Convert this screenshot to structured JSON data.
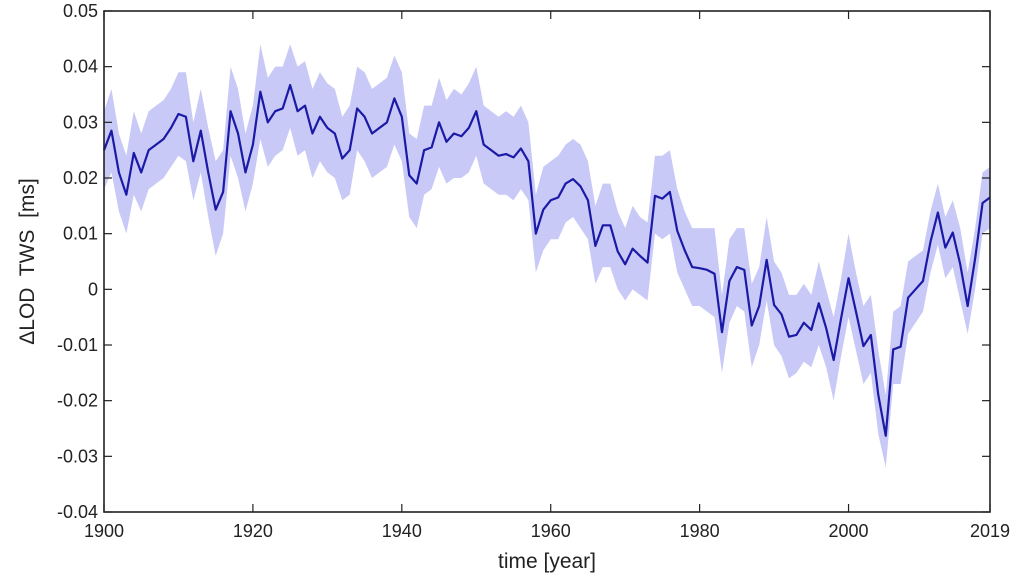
{
  "chart_data": {
    "type": "line",
    "title": "",
    "xlabel": "time [year]",
    "ylabel": "ΔLOD  TWS  [ms]",
    "xlim": [
      1900,
      2019
    ],
    "ylim": [
      -0.04,
      0.05
    ],
    "x_ticks": [
      1900,
      1920,
      1940,
      1960,
      1980,
      2000,
      2019
    ],
    "x_tick_labels": [
      "1900",
      "1920",
      "1940",
      "1960",
      "1980",
      "2000",
      "2019"
    ],
    "y_ticks": [
      -0.04,
      -0.03,
      -0.02,
      -0.01,
      0,
      0.01,
      0.02,
      0.03,
      0.04,
      0.05
    ],
    "y_tick_labels": [
      "-0.04",
      "-0.03",
      "-0.02",
      "-0.01",
      "0",
      "0.01",
      "0.02",
      "0.03",
      "0.04",
      "0.05"
    ],
    "grid": false,
    "legend": "none",
    "colors": {
      "line": "#1a1aa6",
      "band": "#c9c9f7",
      "axis": "#222222"
    },
    "x": [
      1900,
      1901,
      1902,
      1903,
      1904,
      1905,
      1906,
      1907,
      1908,
      1909,
      1910,
      1911,
      1912,
      1913,
      1914,
      1915,
      1916,
      1917,
      1918,
      1919,
      1920,
      1921,
      1922,
      1923,
      1924,
      1925,
      1926,
      1927,
      1928,
      1929,
      1930,
      1931,
      1932,
      1933,
      1934,
      1935,
      1936,
      1937,
      1938,
      1939,
      1940,
      1941,
      1942,
      1943,
      1944,
      1945,
      1946,
      1947,
      1948,
      1949,
      1950,
      1951,
      1952,
      1953,
      1954,
      1955,
      1956,
      1957,
      1958,
      1959,
      1960,
      1961,
      1962,
      1963,
      1964,
      1965,
      1966,
      1967,
      1968,
      1969,
      1970,
      1971,
      1972,
      1973,
      1974,
      1975,
      1976,
      1977,
      1978,
      1979,
      1980,
      1981,
      1982,
      1983,
      1984,
      1985,
      1986,
      1987,
      1988,
      1989,
      1990,
      1991,
      1992,
      1993,
      1994,
      1995,
      1996,
      1997,
      1998,
      1999,
      2000,
      2001,
      2002,
      2003,
      2004,
      2005,
      2006,
      2007,
      2008,
      2009,
      2010,
      2011,
      2012,
      2013,
      2014,
      2015,
      2016,
      2017,
      2018,
      2019
    ],
    "series": [
      {
        "values": [
          0.025,
          0.0285,
          0.021,
          0.017,
          0.0245,
          0.021,
          0.025,
          0.026,
          0.027,
          0.029,
          0.0315,
          0.031,
          0.023,
          0.0285,
          0.021,
          0.0143,
          0.0175,
          0.032,
          0.028,
          0.021,
          0.026,
          0.0355,
          0.03,
          0.032,
          0.0325,
          0.0367,
          0.032,
          0.033,
          0.028,
          0.031,
          0.029,
          0.028,
          0.0235,
          0.025,
          0.0325,
          0.031,
          0.028,
          0.029,
          0.03,
          0.0343,
          0.031,
          0.0205,
          0.019,
          0.025,
          0.0255,
          0.03,
          0.0265,
          0.028,
          0.0275,
          0.029,
          0.032,
          0.026,
          0.025,
          0.024,
          0.0243,
          0.0237,
          0.0253,
          0.023,
          0.01,
          0.0143,
          0.016,
          0.0165,
          0.019,
          0.0198,
          0.0185,
          0.016,
          0.0078,
          0.0115,
          0.0115,
          0.0068,
          0.0045,
          0.0073,
          0.006,
          0.0048,
          0.0168,
          0.0163,
          0.0175,
          0.0105,
          0.007,
          0.004,
          0.0038,
          0.0035,
          0.0028,
          -0.0077,
          0.0015,
          0.004,
          0.0035,
          -0.0065,
          -0.003,
          0.0053,
          -0.0028,
          -0.0045,
          -0.0085,
          -0.0082,
          -0.006,
          -0.0073,
          -0.0025,
          -0.007,
          -0.0127,
          -0.0052,
          0.002,
          -0.004,
          -0.0102,
          -0.0082,
          -0.019,
          -0.0263,
          -0.0108,
          -0.0103,
          -0.0015,
          0,
          0.0015,
          0.0085,
          0.0138,
          0.0075,
          0.0102,
          0.0045,
          -0.003,
          0.0055,
          0.0155,
          0.0165
        ],
        "band_lower": [
          0.018,
          0.021,
          0.014,
          0.01,
          0.017,
          0.014,
          0.018,
          0.019,
          0.02,
          0.022,
          0.024,
          0.023,
          0.016,
          0.021,
          0.013,
          0.006,
          0.01,
          0.024,
          0.02,
          0.014,
          0.019,
          0.027,
          0.022,
          0.024,
          0.025,
          0.029,
          0.024,
          0.025,
          0.02,
          0.023,
          0.021,
          0.02,
          0.016,
          0.017,
          0.025,
          0.023,
          0.02,
          0.021,
          0.022,
          0.026,
          0.023,
          0.013,
          0.011,
          0.017,
          0.018,
          0.022,
          0.019,
          0.02,
          0.02,
          0.021,
          0.024,
          0.019,
          0.018,
          0.017,
          0.017,
          0.016,
          0.018,
          0.016,
          0.003,
          0.007,
          0.009,
          0.009,
          0.012,
          0.013,
          0.011,
          0.009,
          0.001,
          0.004,
          0.004,
          0.0,
          -0.002,
          0.0,
          -0.001,
          -0.002,
          0.01,
          0.009,
          0.01,
          0.003,
          0.0,
          -0.003,
          -0.003,
          -0.004,
          -0.005,
          -0.015,
          -0.006,
          -0.003,
          -0.004,
          -0.014,
          -0.01,
          -0.002,
          -0.01,
          -0.012,
          -0.016,
          -0.015,
          -0.013,
          -0.014,
          -0.01,
          -0.014,
          -0.02,
          -0.012,
          -0.005,
          -0.011,
          -0.017,
          -0.015,
          -0.026,
          -0.032,
          -0.017,
          -0.017,
          -0.008,
          -0.006,
          -0.004,
          0.003,
          0.008,
          0.002,
          0.004,
          -0.002,
          -0.008,
          0.0,
          0.01,
          0.011
        ],
        "band_upper": [
          0.032,
          0.036,
          0.028,
          0.024,
          0.032,
          0.028,
          0.032,
          0.033,
          0.034,
          0.036,
          0.039,
          0.039,
          0.03,
          0.036,
          0.029,
          0.023,
          0.025,
          0.04,
          0.036,
          0.028,
          0.033,
          0.044,
          0.038,
          0.04,
          0.04,
          0.044,
          0.04,
          0.041,
          0.036,
          0.039,
          0.037,
          0.036,
          0.031,
          0.033,
          0.04,
          0.039,
          0.036,
          0.037,
          0.038,
          0.042,
          0.039,
          0.028,
          0.027,
          0.033,
          0.033,
          0.038,
          0.034,
          0.036,
          0.035,
          0.037,
          0.04,
          0.033,
          0.032,
          0.031,
          0.032,
          0.031,
          0.033,
          0.03,
          0.017,
          0.022,
          0.023,
          0.024,
          0.026,
          0.027,
          0.026,
          0.023,
          0.015,
          0.019,
          0.019,
          0.014,
          0.011,
          0.015,
          0.013,
          0.012,
          0.024,
          0.024,
          0.025,
          0.018,
          0.014,
          0.011,
          0.011,
          0.011,
          0.011,
          -0.001,
          0.009,
          0.011,
          0.011,
          0.001,
          0.004,
          0.013,
          0.005,
          0.003,
          -0.001,
          -0.001,
          0.001,
          -0.001,
          0.005,
          0.0,
          -0.005,
          0.002,
          0.01,
          0.003,
          -0.003,
          -0.001,
          -0.011,
          -0.019,
          -0.004,
          -0.003,
          0.005,
          0.006,
          0.007,
          0.014,
          0.019,
          0.013,
          0.016,
          0.011,
          0.003,
          0.011,
          0.021,
          0.022
        ]
      }
    ]
  }
}
